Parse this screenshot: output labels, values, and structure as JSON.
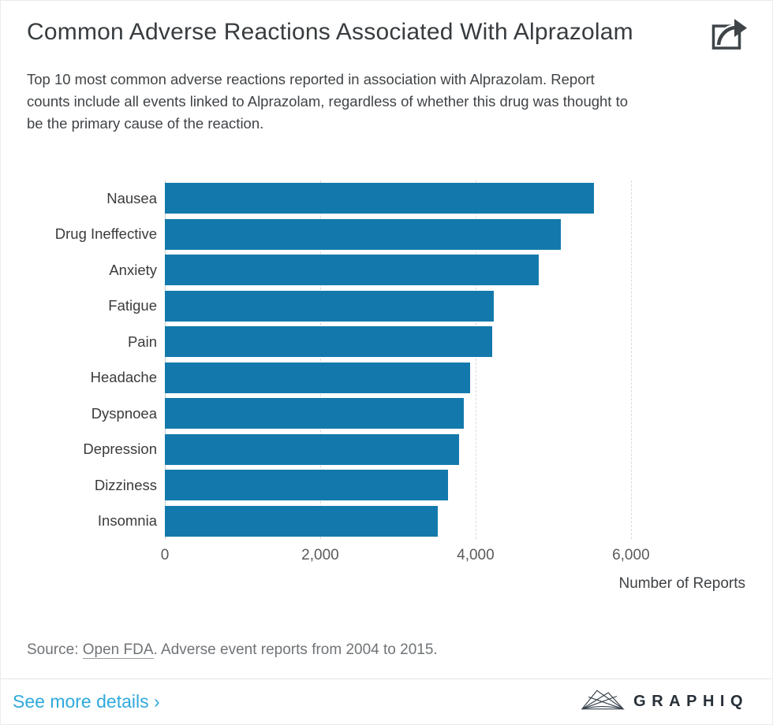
{
  "header": {
    "title": "Common Adverse Reactions Associated With Alprazolam"
  },
  "icons": {
    "header_share": "share-icon",
    "footer_brand": "graphiq-mountain-icon"
  },
  "description_lines": [
    "Top 10 most common adverse reactions reported in association with Alprazolam. Report",
    "counts include all events linked to Alprazolam, regardless of whether this drug was thought to",
    "be the primary cause of the reaction."
  ],
  "chart_data": {
    "type": "bar",
    "orientation": "horizontal",
    "categories": [
      "Nausea",
      "Drug Ineffective",
      "Anxiety",
      "Fatigue",
      "Pain",
      "Headache",
      "Dyspnoea",
      "Depression",
      "Dizziness",
      "Insomnia"
    ],
    "values": [
      5520,
      5100,
      4810,
      4230,
      4210,
      3930,
      3850,
      3790,
      3650,
      3510
    ],
    "xlabel": "Number of Reports",
    "ylabel": "",
    "xlim": [
      0,
      7230
    ],
    "xticks": [
      {
        "label": "0",
        "value": 0
      },
      {
        "label": "2,000",
        "value": 2000
      },
      {
        "label": "4,000",
        "value": 4000
      },
      {
        "label": "6,000",
        "value": 6000
      }
    ],
    "grid": "vertical-dashed",
    "legend": "none",
    "bar_color": "#1379AC"
  },
  "source": {
    "prefix": "Source: ",
    "link_text": "Open FDA",
    "suffix": ". Adverse event reports from 2004 to 2015."
  },
  "footer": {
    "see_more_label": "See more details ›",
    "brand_name": "GRAPHIQ"
  },
  "colors": {
    "bar": "#1379AC",
    "link": "#2FA9DC",
    "title_text": "#383C3F",
    "body_text": "#404447",
    "muted_text": "#707477",
    "gridline": "#D8DADB",
    "footer_border": "#E4E6E7",
    "brand_text": "#272F38"
  }
}
